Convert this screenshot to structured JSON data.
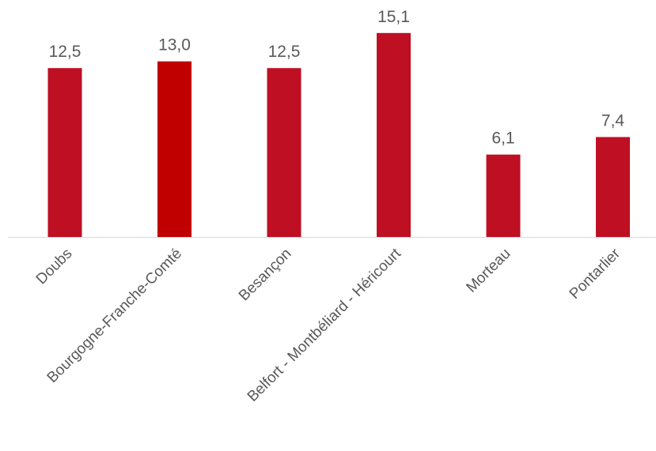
{
  "chart_data": {
    "type": "bar",
    "title": "",
    "xlabel": "",
    "ylabel": "",
    "ylim": [
      0,
      16
    ],
    "grid": false,
    "legend": "none",
    "categories": [
      "Doubs",
      "Bourgogne-Franche-Comté",
      "Besançon",
      "Belfort - Montbéliard - Héricourt",
      "Morteau",
      "Pontarlier"
    ],
    "values": [
      12.5,
      13.0,
      12.5,
      15.1,
      6.1,
      7.4
    ],
    "value_labels": [
      "12,5",
      "13,0",
      "12,5",
      "15,1",
      "6,1",
      "7,4"
    ],
    "colors": {
      "bar": "#BE0F23",
      "bar_highlight": "#C00000",
      "axis": "#D9D9D9",
      "text": "#595959"
    },
    "highlight_index": 1
  }
}
